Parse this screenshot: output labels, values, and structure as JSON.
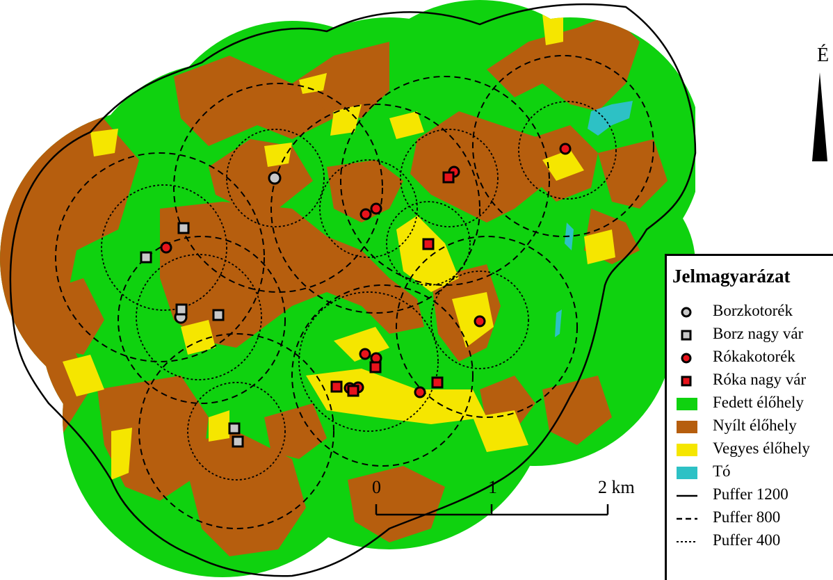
{
  "north": {
    "label": "É"
  },
  "legend": {
    "title": "Jelmagyarázat",
    "items": [
      {
        "label": "Borzkotorék",
        "symbol": "circle",
        "fill": "#c8c8c8"
      },
      {
        "label": "Borz nagy vár",
        "symbol": "square",
        "fill": "#c8c8c8"
      },
      {
        "label": "Rókakotorék",
        "symbol": "circle",
        "fill": "#e8131b"
      },
      {
        "label": "Róka nagy vár",
        "symbol": "square",
        "fill": "#e8131b"
      },
      {
        "label": "Fedett élőhely",
        "symbol": "patch",
        "fill": "#0fd20f"
      },
      {
        "label": "Nyílt élőhely",
        "symbol": "patch",
        "fill": "#b65e0e"
      },
      {
        "label": "Vegyes élőhely",
        "symbol": "patch",
        "fill": "#f5e600"
      },
      {
        "label": "Tó",
        "symbol": "patch",
        "fill": "#2dc1c5"
      },
      {
        "label": "Puffer 1200",
        "symbol": "line-solid",
        "fill": "#000000"
      },
      {
        "label": "Puffer 800",
        "symbol": "line-dashed",
        "fill": "#000000"
      },
      {
        "label": "Puffer 400",
        "symbol": "line-dotted",
        "fill": "#000000"
      }
    ]
  },
  "scalebar": {
    "labels": [
      "0",
      "1",
      "2 km"
    ]
  },
  "colors": {
    "covered": "#0fd20f",
    "open": "#b65e0e",
    "mixed": "#f5e600",
    "pond": "#2dc1c5",
    "badger": "#c8c8c8",
    "fox": "#e8131b"
  }
}
